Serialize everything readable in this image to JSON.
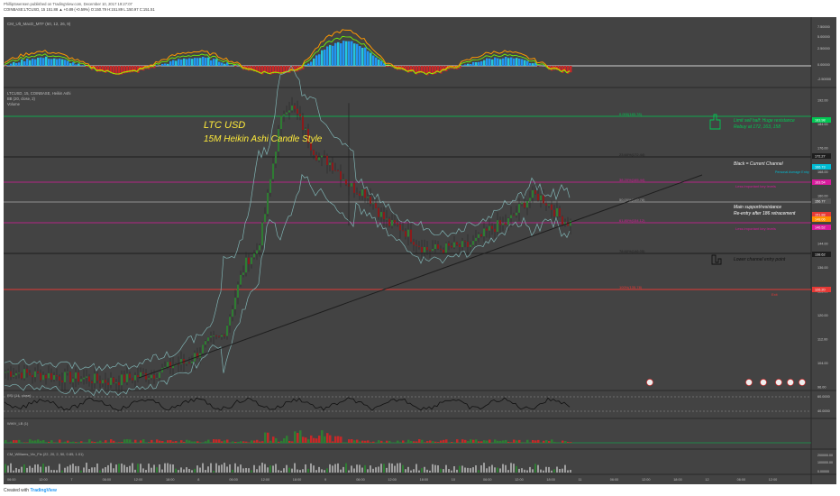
{
  "header": {
    "line1": "PhillipSwensen published on TradingView.com, December 10, 2017 19:27:07",
    "line2": "COINBASE:LTCUSD, 15  151.88  ▲ +0.89 (+0.59%)  O:150.79  H:151.89  L:150.97  C:151.51"
  },
  "footer": {
    "created_with": "Created with",
    "brand": "TradingView"
  },
  "panes": {
    "macd_label": "CM_Ult_MacD_MTF (60, 12, 26, 9)",
    "main_label": "LTCUSD, 15, COINBASE, Heikin Ashi",
    "main_sub1": "BB (20, close, 2)",
    "main_sub2": "Volume",
    "rsi_label": "RSI (14, close)",
    "wvf_label": "WWV_LB (1)",
    "vix_label": "CM_Williams_Vix_Fix (22, 20, 2, 50, 0.85, 1.01)"
  },
  "annotations": {
    "title1": "LTC USD",
    "title2": "15M Heikin Ashi Candle Style",
    "limit_sell_1": "Limit sell half: Huge resistance",
    "limit_sell_2": "Rebuy at 172, 163, 158",
    "black_channel": "Black = Current Channel",
    "personal_avg": "Personal Average Entry",
    "less_important_1": "Less important key levels",
    "main_support_1": "Main support/resistance",
    "main_support_2": "Re-entry after 186 retracement",
    "less_important_2": "Less important key levels",
    "lower_channel": "Lower channel entry point",
    "red_label": "Exit"
  },
  "price_tags": [
    {
      "text": "183.98",
      "color": "#00c853"
    },
    {
      "text": "172.27",
      "color": "#1e1e1e"
    },
    {
      "text": "166.73",
      "color": "#00bcd4"
    },
    {
      "text": "163.54",
      "color": "#d81b9c"
    },
    {
      "text": "156.77",
      "color": "#555555"
    },
    {
      "text": "151.88",
      "color": "#e53935"
    },
    {
      "text": "148.06",
      "color": "#ff8f00"
    },
    {
      "text": "146.52",
      "color": "#d81b9c"
    },
    {
      "text": "138.62",
      "color": "#1e1e1e"
    },
    {
      "text": "126.20",
      "color": "#e53935"
    }
  ],
  "macd_axis": [
    "7.50000",
    "5.00000",
    "2.50000",
    "0.00000",
    "-2.50000"
  ],
  "rsi_axis": [
    "60.0000",
    "40.0000"
  ],
  "vix_axis": [
    "200000.00",
    "100000.00",
    "0.00000"
  ],
  "price_axis": [
    "192.00",
    "184.00",
    "176.00",
    "168.00",
    "160.00",
    "152.00",
    "144.00",
    "136.00",
    "128.00",
    "120.00",
    "112.00",
    "104.00",
    "96.00"
  ],
  "time_axis": [
    "06:00",
    "12:00",
    "7",
    "06:00",
    "12:00",
    "18:00",
    "8",
    "06:00",
    "12:00",
    "18:00",
    "9",
    "06:00",
    "12:00",
    "18:00",
    "10",
    "06:00",
    "12:00",
    "18:00",
    "11",
    "06:00",
    "12:00",
    "18:00",
    "12",
    "06:00",
    "12:00"
  ],
  "fib_levels": [
    {
      "text": "0.000(183.78)",
      "color": "#00c853"
    },
    {
      "text": "23.60%(172.44)",
      "color": "#1e1e1e"
    },
    {
      "text": "38.20%(165.44)",
      "color": "#d81b9c"
    },
    {
      "text": "50.00%(159.78)",
      "color": "#aaaaaa"
    },
    {
      "text": "61.80%(154.12)",
      "color": "#d81b9c"
    },
    {
      "text": "78.60%(146.05)",
      "color": "#1e1e1e"
    },
    {
      "text": "100%(135.78)",
      "color": "#e53935"
    }
  ],
  "chart_data": {
    "type": "line",
    "title": "LTC USD",
    "subtitle": "15M Heikin Ashi Candle Style",
    "series": [
      {
        "x": [
          "7",
          "06:00",
          "12:00",
          "18:00",
          "8",
          "06:00",
          "12:00",
          "18:00",
          "9",
          "06:00",
          "12:00",
          "18:00",
          "10",
          "06:00",
          "12:00",
          "18:00",
          "11"
        ],
        "values": [
          101,
          100,
          99,
          98,
          100,
          104,
          112,
          140,
          190,
          172,
          162,
          150,
          142,
          143,
          150,
          160,
          151
        ]
      }
    ],
    "ylim": [
      96,
      192
    ],
    "grid": true
  }
}
